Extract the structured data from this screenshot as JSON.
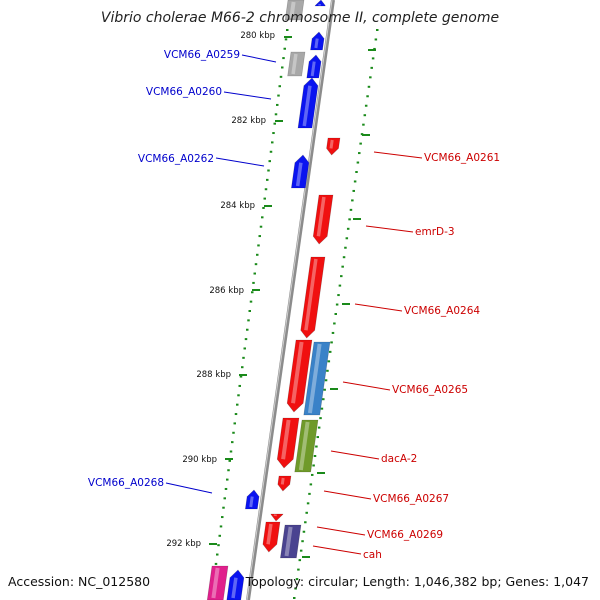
{
  "title": "Vibrio cholerae M66-2 chromosome II, complete genome",
  "footer": {
    "accession": "Accession: NC_012580",
    "summary": "Topology: circular; Length: 1,046,382 bp; Genes: 1,047"
  },
  "colors": {
    "backbone": "#8c8c8c",
    "tick": "#1a8a1a",
    "forward_label": "#0000cc",
    "reverse_label": "#cc0000",
    "blue": "#0a14f0",
    "red": "#f01010",
    "grey": "#a8a8a8",
    "steelblue": "#3a82c8",
    "olive": "#6f9a2a",
    "purple": "#4a4390",
    "magenta": "#e0208c"
  },
  "scale": {
    "unit": "kbp",
    "labels": [
      {
        "kbp": 280,
        "text": "280 kbp"
      },
      {
        "kbp": 282,
        "text": "282 kbp"
      },
      {
        "kbp": 284,
        "text": "284 kbp"
      },
      {
        "kbp": 286,
        "text": "286 kbp"
      },
      {
        "kbp": 288,
        "text": "288 kbp"
      },
      {
        "kbp": 290,
        "text": "290 kbp"
      },
      {
        "kbp": 292,
        "text": "292 kbp"
      }
    ]
  },
  "gene_labels": [
    {
      "text": "VCM66_A0259",
      "strand": "forward"
    },
    {
      "text": "VCM66_A0260",
      "strand": "forward"
    },
    {
      "text": "VCM66_A0262",
      "strand": "forward"
    },
    {
      "text": "VCM66_A0268",
      "strand": "forward"
    },
    {
      "text": "VCM66_A0261",
      "strand": "reverse"
    },
    {
      "text": "emrD-3",
      "strand": "reverse"
    },
    {
      "text": "VCM66_A0264",
      "strand": "reverse"
    },
    {
      "text": "VCM66_A0265",
      "strand": "reverse"
    },
    {
      "text": "dacA-2",
      "strand": "reverse"
    },
    {
      "text": "VCM66_A0267",
      "strand": "reverse"
    },
    {
      "text": "VCM66_A0269",
      "strand": "reverse"
    },
    {
      "text": "cah",
      "strand": "reverse"
    }
  ]
}
